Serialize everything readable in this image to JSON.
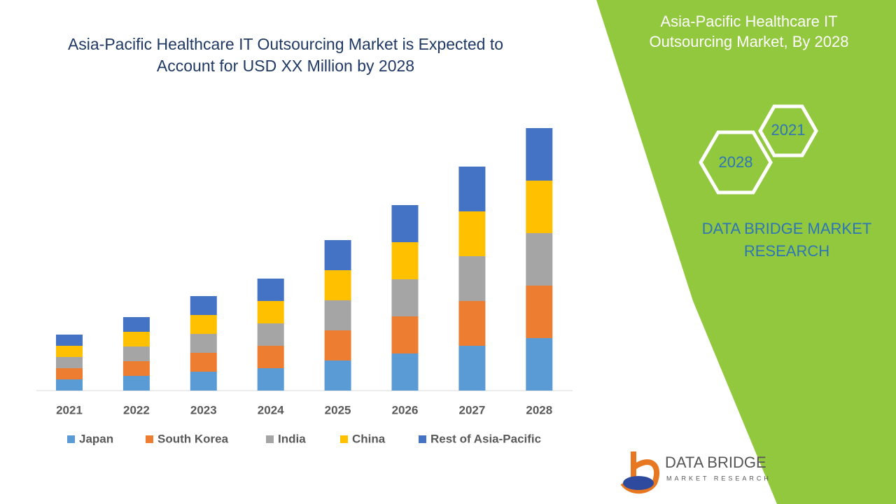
{
  "chart_data": {
    "type": "stacked-bar",
    "title": "Asia-Pacific Healthcare IT Outsourcing Market is Expected to Account for USD XX Million by 2028",
    "categories": [
      "2021",
      "2022",
      "2023",
      "2024",
      "2025",
      "2026",
      "2027",
      "2028"
    ],
    "series": [
      {
        "name": "Japan",
        "color": "#5b9bd5",
        "values": [
          16,
          21,
          27,
          32,
          43,
          53,
          64,
          75
        ]
      },
      {
        "name": "South Korea",
        "color": "#ed7d31",
        "values": [
          16,
          21,
          27,
          32,
          43,
          53,
          64,
          75
        ]
      },
      {
        "name": "India",
        "color": "#a5a5a5",
        "values": [
          16,
          21,
          27,
          32,
          43,
          53,
          64,
          75
        ]
      },
      {
        "name": "China",
        "color": "#ffc000",
        "values": [
          16,
          21,
          27,
          32,
          43,
          53,
          64,
          75
        ]
      },
      {
        "name": "Rest of Asia-Pacific",
        "color": "#4472c4",
        "values": [
          16,
          21,
          27,
          32,
          43,
          53,
          64,
          75
        ]
      }
    ],
    "ylim": [
      0,
      400
    ]
  },
  "panel": {
    "title": "Asia-Pacific Healthcare IT Outsourcing Market, By 2028",
    "hex_start": "2021",
    "hex_end": "2028",
    "brand": "DATA BRIDGE MARKET RESEARCH",
    "logo_name": "DATA BRIDGE",
    "logo_sub": "MARKET RESEARCH"
  }
}
